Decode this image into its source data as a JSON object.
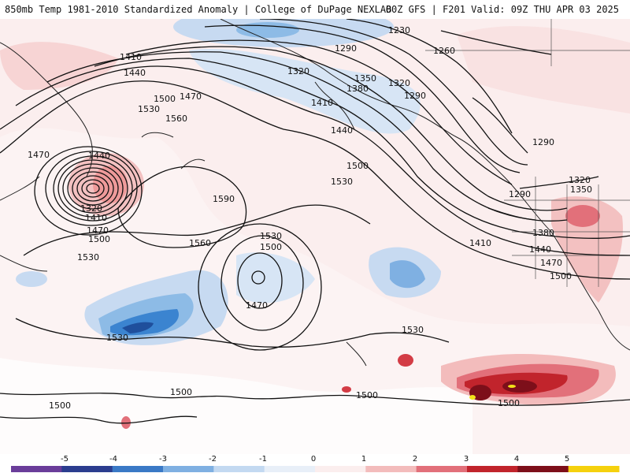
{
  "header": {
    "title_left": "850mb Temp 1981-2010 Standardized Anomaly | College of DuPage NEXLAB",
    "title_right": "00Z GFS | F201 Valid: 09Z THU APR 03 2025"
  },
  "contour_labels": [
    "1230",
    "1290",
    "1260",
    "1320",
    "1350",
    "1320",
    "1290",
    "1380",
    "1410",
    "1410",
    "1440",
    "1500",
    "1530",
    "1470",
    "1560",
    "1440",
    "1470",
    "1320",
    "1410",
    "1470",
    "1500",
    "1530",
    "1590",
    "1530",
    "1500",
    "1560",
    "1470",
    "1530",
    "1440",
    "1500",
    "1530",
    "1290",
    "1290",
    "1320",
    "1350",
    "1380",
    "1410",
    "1440",
    "1470",
    "1500",
    "1530",
    "1500",
    "1500",
    "1500",
    "1500"
  ],
  "colorbar": {
    "ticks": [
      "-5",
      "-4",
      "-3",
      "-2",
      "-1",
      "0",
      "1",
      "2",
      "3",
      "4",
      "5"
    ],
    "colors": [
      "#6a3d9a",
      "#2b3d8f",
      "#3a79c6",
      "#7fb0e2",
      "#c3d9f1",
      "#e8eff8",
      "#fbeeee",
      "#f3bcbc",
      "#e2707a",
      "#c1242c",
      "#7d0f1a",
      "#f5d10d"
    ]
  },
  "colors": {
    "land_outline": "#222222",
    "contour": "#111111",
    "cold_light": "#c7daf1",
    "cold_mid": "#8dbbe6",
    "cold_deep": "#3b84d0",
    "cold_core": "#1f4f9c",
    "warm_light": "#f7d4d4",
    "warm_mid": "#ee9a9a",
    "warm_deep": "#d33c45",
    "warm_core": "#8e1420",
    "warm_peak": "#f2e21a"
  }
}
